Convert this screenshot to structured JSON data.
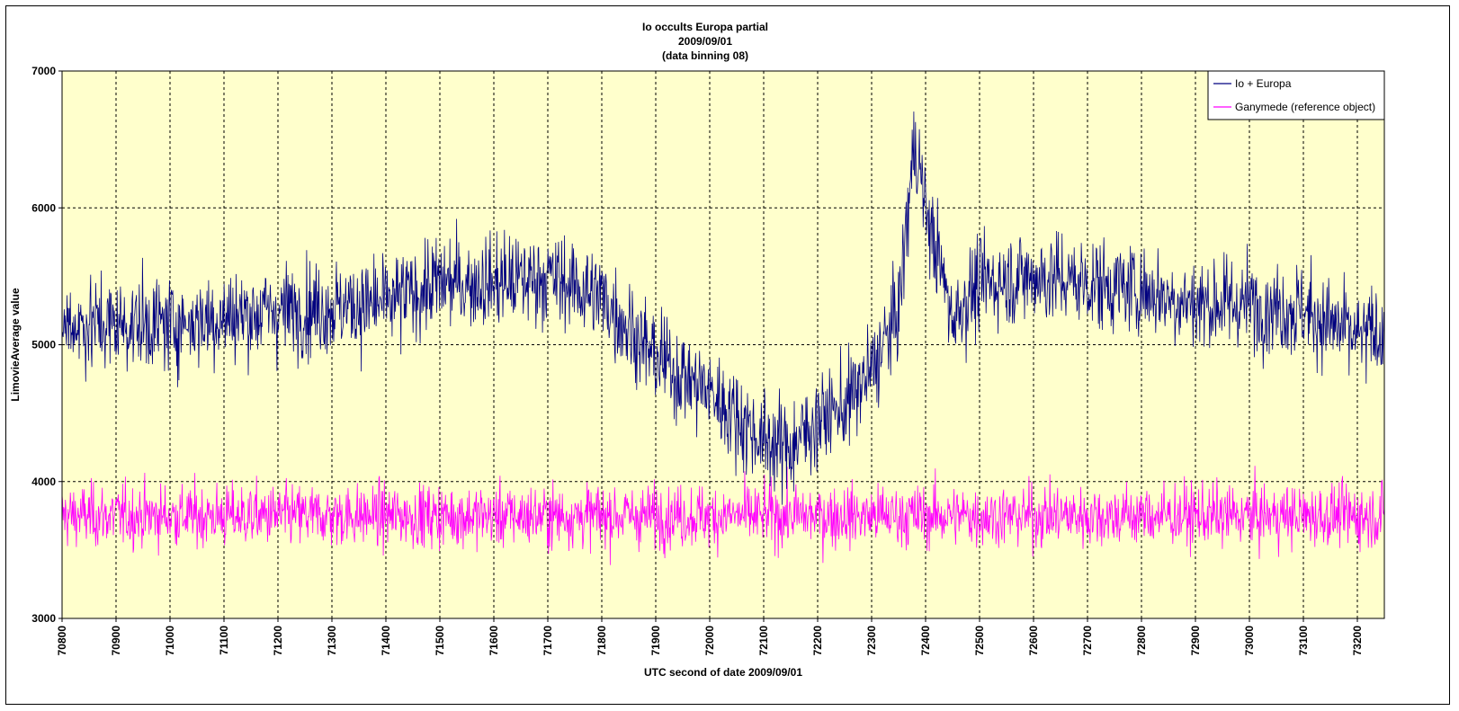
{
  "chart_data": {
    "type": "line",
    "title": [
      "Io occults Europa partial",
      "2009/09/01",
      "(data binning 08)"
    ],
    "xlabel": "UTC second  of date 2009/09/01",
    "ylabel": "LimovieAverage value",
    "xlim": [
      70800,
      73250
    ],
    "ylim": [
      3000,
      7000
    ],
    "x_ticks": [
      "70800",
      "70900",
      "71000",
      "71100",
      "71200",
      "71300",
      "71400",
      "71500",
      "71600",
      "71700",
      "71800",
      "71900",
      "72000",
      "72100",
      "72200",
      "72300",
      "72400",
      "72500",
      "72600",
      "72700",
      "72800",
      "72900",
      "73000",
      "73100",
      "73200"
    ],
    "y_ticks": [
      "3000",
      "4000",
      "5000",
      "6000",
      "7000"
    ],
    "grid": true,
    "legend_position": "top-right",
    "background_color": "#FFFFCC",
    "series": [
      {
        "name": "Io + Europa",
        "color": "#000080",
        "baseline_x": [
          70800,
          71000,
          71200,
          71400,
          71500,
          71600,
          71700,
          71800,
          71900,
          72000,
          72100,
          72150,
          72200,
          72250,
          72300,
          72350,
          72380,
          72400,
          72450,
          72500,
          72600,
          72700,
          72800,
          72900,
          73000,
          73100,
          73200,
          73250
        ],
        "baseline_y": [
          5150,
          5150,
          5250,
          5300,
          5450,
          5450,
          5500,
          5350,
          4900,
          4650,
          4300,
          4250,
          4450,
          4550,
          4800,
          5250,
          6500,
          6000,
          5200,
          5450,
          5500,
          5450,
          5400,
          5300,
          5300,
          5250,
          5050,
          5100
        ],
        "amplitude": 450
      },
      {
        "name": "Ganymede (reference object)",
        "color": "#FF00FF",
        "baseline_x": [
          70800,
          73250
        ],
        "baseline_y": [
          3750,
          3750
        ],
        "amplitude": 300
      }
    ]
  }
}
